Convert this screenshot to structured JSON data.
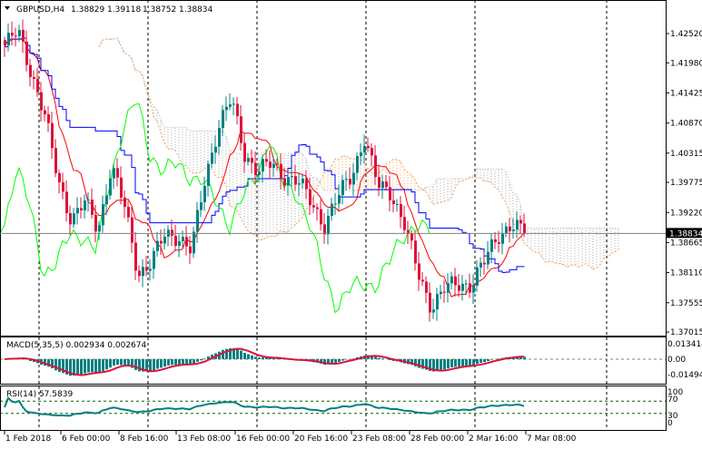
{
  "header": {
    "symbol": "GBPUSD,H4",
    "open": "1.38829",
    "high": "1.39118",
    "low": "1.38752",
    "close": "1.38834"
  },
  "chart_data": {
    "type": "candlestick",
    "symbol": "GBPUSD",
    "timeframe": "H4",
    "ylim": [
      1.3695,
      1.4295
    ],
    "y_ticks": [
      "1.42520",
      "1.41980",
      "1.41425",
      "1.40870",
      "1.40315",
      "1.39775",
      "1.39220",
      "1.38665",
      "1.38110",
      "1.37555",
      "1.37015"
    ],
    "current_price": "1.38834",
    "x_ticks": [
      "1 Feb 2018",
      "6 Feb 00:00",
      "8 Feb 16:00",
      "13 Feb 08:00",
      "16 Feb 00:00",
      "20 Feb 16:00",
      "23 Feb 08:00",
      "28 Feb 00:00",
      "2 Mar 16:00",
      "7 Mar 08:00"
    ],
    "close_keypoints": [
      1.423,
      1.4255,
      1.418,
      1.41,
      1.398,
      1.391,
      1.394,
      1.389,
      1.401,
      1.393,
      1.381,
      1.383,
      1.388,
      1.388,
      1.385,
      1.398,
      1.408,
      1.413,
      1.403,
      1.4,
      1.401,
      1.399,
      1.398,
      1.394,
      1.39,
      1.395,
      1.399,
      1.406,
      1.397,
      1.396,
      1.39,
      1.381,
      1.375,
      1.378,
      1.379,
      1.379,
      1.383,
      1.388,
      1.39,
      1.38834
    ],
    "indicators": {
      "ichimoku": true,
      "colors": {
        "tenkan": "#ff0000",
        "kijun": "#0000ff",
        "chikou": "#00ff00",
        "span_a": "#f4a460",
        "span_b": "#a9a9a9",
        "bull": "#008080",
        "bear": "#dc143c"
      }
    },
    "macd": {
      "label": "MACD(5,35,5) 0.002934 0.002674",
      "ticks": [
        "0.013414",
        "0.00",
        "-0.014947"
      ]
    },
    "rsi": {
      "label": "RSI(14) 57.5839",
      "ticks": [
        "100",
        "70",
        "30",
        "0"
      ],
      "levels": [
        70,
        30
      ]
    }
  }
}
